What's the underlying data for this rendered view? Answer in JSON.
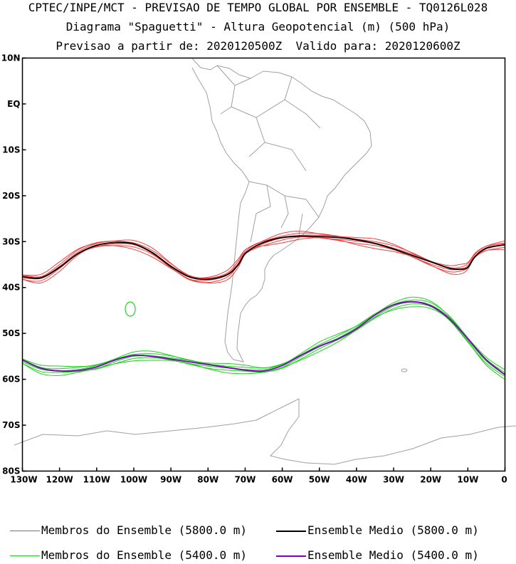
{
  "title_lines": [
    "CPTEC/INPE/MCT - PREVISAO DE TEMPO GLOBAL POR ENSEMBLE - TQ0126L028",
    "Diagrama \"Spaguetti\" - Altura Geopotencial (m) (500 hPa)",
    "Previsao a partir de: 2020120500Z  Valido para: 2020120600Z"
  ],
  "chart_data": {
    "type": "line",
    "x_ticks": [
      {
        "value": -130,
        "label": "130W"
      },
      {
        "value": -120,
        "label": "120W"
      },
      {
        "value": -110,
        "label": "110W"
      },
      {
        "value": -100,
        "label": "100W"
      },
      {
        "value": -90,
        "label": "90W"
      },
      {
        "value": -80,
        "label": "80W"
      },
      {
        "value": -70,
        "label": "70W"
      },
      {
        "value": -60,
        "label": "60W"
      },
      {
        "value": -50,
        "label": "50W"
      },
      {
        "value": -40,
        "label": "40W"
      },
      {
        "value": -30,
        "label": "30W"
      },
      {
        "value": -20,
        "label": "20W"
      },
      {
        "value": -10,
        "label": "10W"
      },
      {
        "value": 0,
        "label": "0"
      }
    ],
    "y_ticks": [
      {
        "value": 10,
        "label": "10N"
      },
      {
        "value": 0,
        "label": "EQ"
      },
      {
        "value": -10,
        "label": "10S"
      },
      {
        "value": -20,
        "label": "20S"
      },
      {
        "value": -30,
        "label": "30S"
      },
      {
        "value": -40,
        "label": "40S"
      },
      {
        "value": -50,
        "label": "50S"
      },
      {
        "value": -60,
        "label": "60S"
      },
      {
        "value": -70,
        "label": "70S"
      },
      {
        "value": -80,
        "label": "80S"
      }
    ],
    "xlim": [
      -130,
      0
    ],
    "ylim": [
      -80,
      10
    ],
    "series": [
      {
        "name": "Membros do Ensemble (5800.0 m)",
        "role": "members",
        "color": "#f04040",
        "x": [
          -130,
          -125,
          -120,
          -115,
          -110,
          -105,
          -100,
          -95,
          -90,
          -85,
          -80,
          -75,
          -72,
          -70,
          -67,
          -64,
          -60,
          -55,
          -50,
          -45,
          -40,
          -35,
          -30,
          -25,
          -20,
          -15,
          -12,
          -10,
          -8,
          -5,
          0
        ],
        "y": [
          -37.5,
          -37.8,
          -35.5,
          -32.5,
          -30.7,
          -30.1,
          -30.5,
          -32.5,
          -35.5,
          -37.8,
          -38.1,
          -37.2,
          -35.0,
          -32.5,
          -30.8,
          -29.8,
          -29.1,
          -28.8,
          -28.9,
          -29.1,
          -29.6,
          -30.4,
          -31.6,
          -33.0,
          -34.5,
          -35.8,
          -36.0,
          -35.5,
          -33.0,
          -31.2,
          -30.5
        ]
      },
      {
        "name": "Ensemble Medio (5800.0 m)",
        "role": "mean",
        "color": "#000000",
        "x": [
          -130,
          -125,
          -120,
          -115,
          -110,
          -105,
          -100,
          -95,
          -90,
          -85,
          -80,
          -75,
          -72,
          -70,
          -67,
          -64,
          -60,
          -55,
          -50,
          -45,
          -40,
          -35,
          -30,
          -25,
          -20,
          -15,
          -12,
          -10,
          -8,
          -5,
          0
        ],
        "y": [
          -37.6,
          -37.9,
          -35.6,
          -32.6,
          -30.8,
          -30.2,
          -30.5,
          -32.4,
          -35.4,
          -37.7,
          -38.2,
          -37.3,
          -35.2,
          -32.6,
          -30.9,
          -29.9,
          -29.1,
          -28.8,
          -28.9,
          -29.1,
          -29.6,
          -30.4,
          -31.6,
          -33.0,
          -34.4,
          -35.8,
          -36.0,
          -35.6,
          -33.2,
          -31.4,
          -30.7
        ]
      },
      {
        "name": "Membros do Ensemble (5400.0 m)",
        "role": "members",
        "color": "#20d020",
        "x": [
          -130,
          -125,
          -120,
          -115,
          -110,
          -105,
          -100,
          -95,
          -90,
          -85,
          -80,
          -75,
          -70,
          -65,
          -60,
          -55,
          -50,
          -45,
          -40,
          -35,
          -30,
          -25,
          -20,
          -15,
          -10,
          -5,
          0
        ],
        "y": [
          -55.8,
          -57.6,
          -58.2,
          -58.1,
          -57.3,
          -55.8,
          -54.8,
          -55.0,
          -55.6,
          -56.2,
          -56.8,
          -57.4,
          -58.0,
          -58.2,
          -57.0,
          -54.8,
          -52.8,
          -51.2,
          -49.0,
          -46.0,
          -43.8,
          -43.1,
          -44.0,
          -46.8,
          -51.2,
          -55.8,
          -59.0
        ]
      },
      {
        "name": "Ensemble Medio (5400.0 m)",
        "role": "mean",
        "color": "#8000c0",
        "x": [
          -130,
          -125,
          -120,
          -115,
          -110,
          -105,
          -100,
          -95,
          -90,
          -85,
          -80,
          -75,
          -70,
          -65,
          -60,
          -55,
          -50,
          -45,
          -40,
          -35,
          -30,
          -25,
          -20,
          -15,
          -10,
          -5,
          0
        ],
        "y": [
          -55.8,
          -57.6,
          -58.2,
          -58.1,
          -57.3,
          -55.8,
          -54.8,
          -55.0,
          -55.6,
          -56.2,
          -56.8,
          -57.4,
          -58.0,
          -58.2,
          -57.0,
          -54.8,
          -52.8,
          -51.2,
          -49.0,
          -46.0,
          -43.8,
          -43.1,
          -44.0,
          -46.8,
          -51.2,
          -55.8,
          -59.0
        ]
      }
    ],
    "legend": [
      {
        "label": "Membros do Ensemble (5800.0 m)",
        "color": "#f04040"
      },
      {
        "label": "Ensemble Medio (5800.0 m)",
        "color": "#000000"
      },
      {
        "label": "Membros do Ensemble (5400.0 m)",
        "color": "#20d020"
      },
      {
        "label": "Ensemble Medio (5400.0 m)",
        "color": "#8000c0"
      }
    ],
    "legend_position": "bottom",
    "grid": false,
    "background_map": "South America coastlines and country borders (gray)",
    "map_color": "#a0a0a0"
  }
}
